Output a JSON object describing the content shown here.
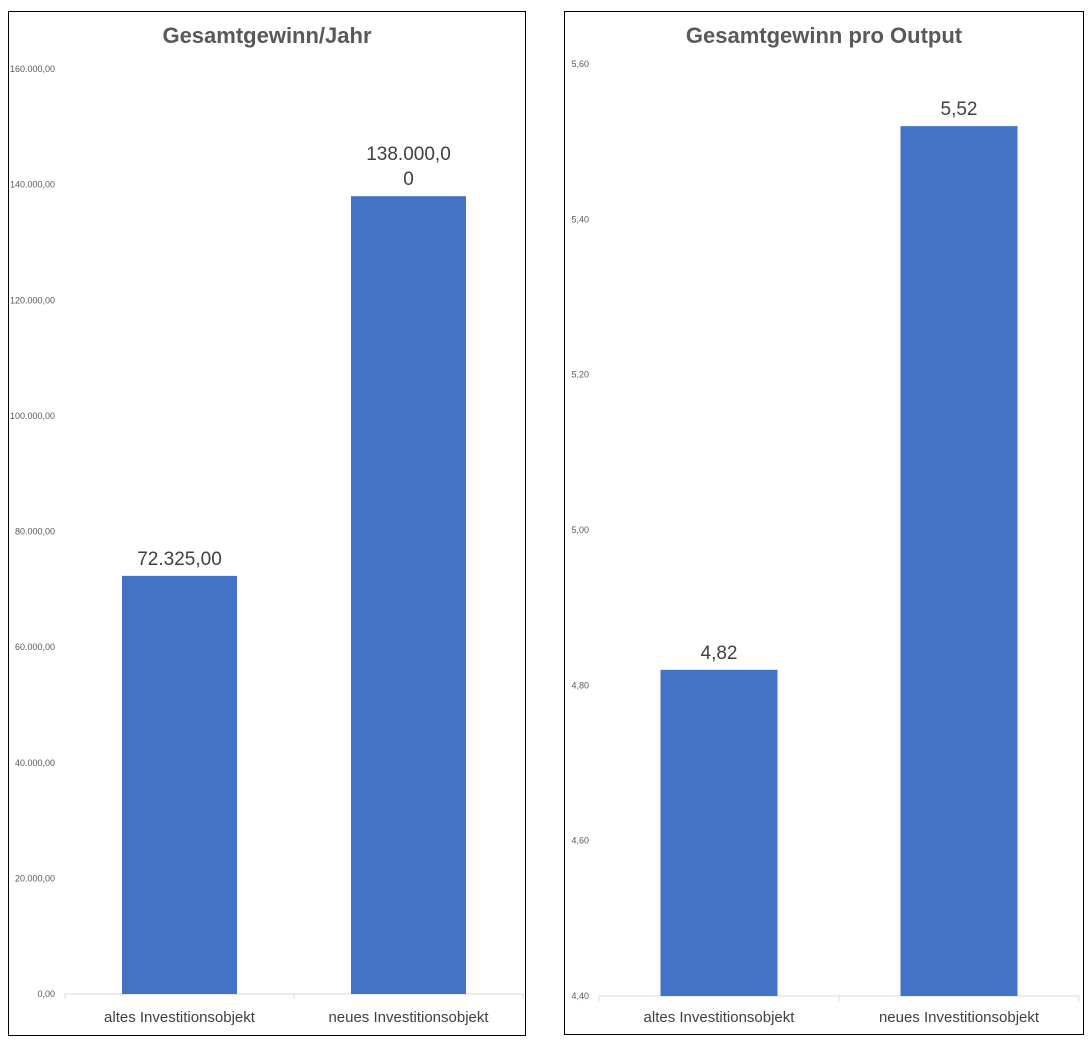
{
  "chart_data": [
    {
      "type": "bar",
      "title": "Gesamtgewinn/Jahr",
      "xlabel": "",
      "ylabel": "",
      "categories": [
        "altes Investitionsobjekt",
        "neues Investitionsobjekt"
      ],
      "values": [
        72325,
        138000
      ],
      "data_labels": [
        [
          "72.325,00"
        ],
        [
          "138.000,0",
          "0"
        ]
      ],
      "ylim": [
        0,
        160000
      ],
      "y_ticks": [
        0,
        20000,
        40000,
        60000,
        80000,
        100000,
        120000,
        140000,
        160000
      ],
      "y_tick_labels": [
        "0,00",
        "20.000,00",
        "40.000,00",
        "60.000,00",
        "80.000,00",
        "100.000,00",
        "120.000,00",
        "140.000,00",
        "160.000,00"
      ],
      "grid": false,
      "legend": "none",
      "bar_color": "#4472C4"
    },
    {
      "type": "bar",
      "title": "Gesamtgewinn pro Output",
      "xlabel": "",
      "ylabel": "",
      "categories": [
        "altes Investitionsobjekt",
        "neues Investitionsobjekt"
      ],
      "values": [
        4.82,
        5.52
      ],
      "data_labels": [
        [
          "4,82"
        ],
        [
          "5,52"
        ]
      ],
      "ylim": [
        4.4,
        5.6
      ],
      "y_ticks": [
        4.4,
        4.6,
        4.8,
        5.0,
        5.2,
        5.4,
        5.6
      ],
      "y_tick_labels": [
        "4,40",
        "4,60",
        "4,80",
        "5,00",
        "5,20",
        "5,40",
        "5,60"
      ],
      "grid": false,
      "legend": "none",
      "bar_color": "#4472C4"
    }
  ]
}
